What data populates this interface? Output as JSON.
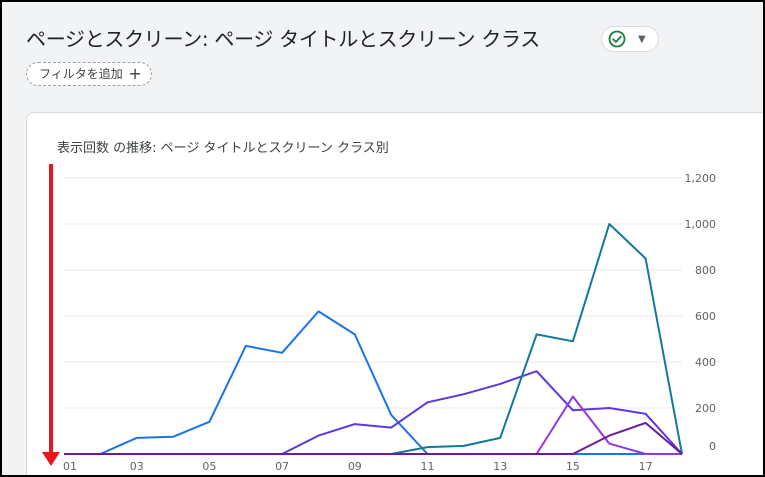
{
  "header": {
    "title": "ページとスクリーン: ページ タイトルとスクリーン クラス",
    "filter_label": "フィルタを追加",
    "status_icon": "check-circle-icon",
    "status_color": "#188038"
  },
  "chart_data": {
    "type": "line",
    "title": "表示回数 の推移: ページ タイトルとスクリーン クラス別",
    "xlabel": "",
    "ylabel": "",
    "x_ticks": [
      "01",
      "03",
      "05",
      "07",
      "09",
      "11",
      "13",
      "15",
      "17"
    ],
    "y_ticks": [
      "1,200",
      "1,000",
      "800",
      "600",
      "400",
      "200",
      "0"
    ],
    "ylim": [
      0,
      1200
    ],
    "grid": true,
    "series": [
      {
        "color": "#1a73e8",
        "values": [
          0,
          0,
          70,
          75,
          140,
          470,
          440,
          620,
          520,
          170,
          0,
          0,
          0,
          0,
          0,
          0,
          0,
          0
        ]
      },
      {
        "color": "#5e35e0",
        "values": [
          0,
          0,
          0,
          0,
          0,
          0,
          0,
          80,
          130,
          115,
          225,
          260,
          305,
          360,
          190,
          200,
          175,
          0
        ]
      },
      {
        "color": "#12799b",
        "values": [
          0,
          0,
          0,
          0,
          0,
          0,
          0,
          0,
          0,
          0,
          30,
          35,
          70,
          520,
          490,
          1000,
          850,
          0
        ]
      },
      {
        "color": "#9334e6",
        "values": [
          0,
          0,
          0,
          0,
          0,
          0,
          0,
          0,
          0,
          0,
          0,
          0,
          0,
          0,
          250,
          45,
          0,
          0
        ]
      },
      {
        "color": "#6a1b9a",
        "values": [
          0,
          0,
          0,
          0,
          0,
          0,
          0,
          0,
          0,
          0,
          0,
          0,
          0,
          0,
          0,
          80,
          135,
          0
        ]
      }
    ]
  },
  "annotation": {
    "arrow_color": "#e8161b"
  }
}
